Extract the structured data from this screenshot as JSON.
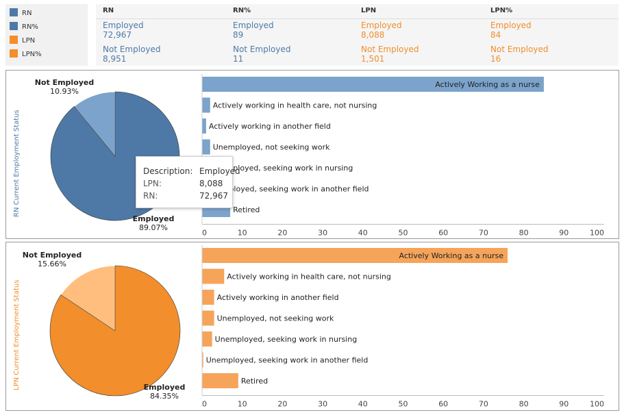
{
  "colors": {
    "rn": "#4e79a7",
    "rn_light": "#7ba3cb",
    "lpn": "#f28e2b",
    "lpn_light": "#ffbe7d",
    "rn_text": "#4e79a7",
    "lpn_text": "#f28e2b"
  },
  "legend": [
    {
      "label": "RN",
      "color": "#4e79a7"
    },
    {
      "label": "RN%",
      "color": "#4e79a7"
    },
    {
      "label": "LPN",
      "color": "#f28e2b"
    },
    {
      "label": "LPN%",
      "color": "#f28e2b"
    }
  ],
  "summary": {
    "headers": [
      "RN",
      "RN%",
      "LPN",
      "LPN%"
    ],
    "rows": [
      {
        "label": "Employed",
        "values": [
          "72,967",
          "89",
          "8,088",
          "84"
        ]
      },
      {
        "label": "Not Employed",
        "values": [
          "8,951",
          "11",
          "1,501",
          "16"
        ]
      }
    ]
  },
  "tooltip": {
    "description_label": "Description:",
    "description_value": "Employed",
    "lpn_label": "LPN:",
    "lpn_value": "8,088",
    "rn_label": "RN:",
    "rn_value": "72,967"
  },
  "chart_data": [
    {
      "type": "pie",
      "title": "RN Current Employment Status",
      "slices": [
        {
          "label": "Employed",
          "pct_label": "89.07%",
          "value": 89.07
        },
        {
          "label": "Not Employed",
          "pct_label": "10.93%",
          "value": 10.93
        }
      ]
    },
    {
      "type": "bar",
      "categories": [
        "Actively Working as a nurse",
        "Actively working in health care, not nursing",
        "Actively working in another field",
        "Unemployed, not seeking work",
        "Unemployed, seeking work in nursing",
        "Unemployed, seeking work in another field",
        "Retired"
      ],
      "values": [
        85,
        2,
        1,
        2,
        1.5,
        0.5,
        7
      ],
      "xlim": [
        0,
        100
      ],
      "ticks": [
        "0",
        "10",
        "20",
        "30",
        "40",
        "50",
        "60",
        "70",
        "80",
        "90",
        "100"
      ]
    },
    {
      "type": "pie",
      "title": "LPN Current Employment Status",
      "slices": [
        {
          "label": "Employed",
          "pct_label": "84.35%",
          "value": 84.35
        },
        {
          "label": "Not Employed",
          "pct_label": "15.66%",
          "value": 15.66
        }
      ]
    },
    {
      "type": "bar",
      "categories": [
        "Actively Working as a nurse",
        "Actively working in health care, not nursing",
        "Actively working in another field",
        "Unemployed, not seeking work",
        "Unemployed, seeking work in nursing",
        "Unemployed, seeking work in another field",
        "Retired"
      ],
      "values": [
        76,
        5.5,
        3,
        3,
        2.5,
        0.3,
        9
      ],
      "xlim": [
        0,
        100
      ],
      "ticks": [
        "0",
        "10",
        "20",
        "30",
        "40",
        "50",
        "60",
        "70",
        "80",
        "90",
        "100"
      ]
    }
  ]
}
